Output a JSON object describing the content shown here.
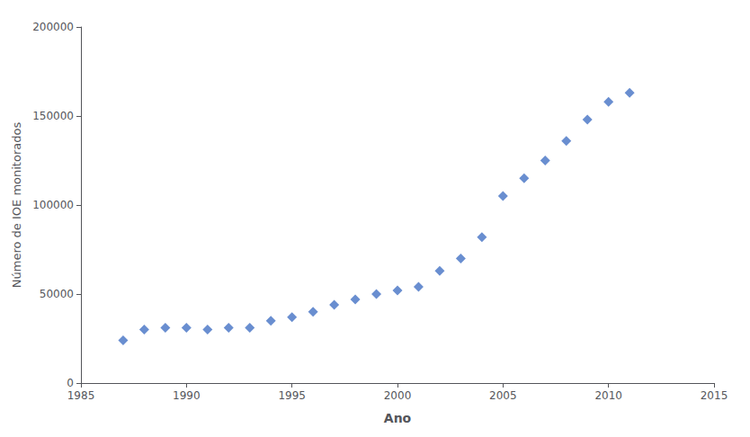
{
  "chart_data": {
    "type": "scatter",
    "x": [
      1987,
      1988,
      1989,
      1990,
      1991,
      1992,
      1993,
      1994,
      1995,
      1996,
      1997,
      1998,
      1999,
      2000,
      2001,
      2002,
      2003,
      2004,
      2005,
      2006,
      2007,
      2008,
      2009,
      2010,
      2011
    ],
    "values": [
      24000,
      30000,
      31000,
      31000,
      30000,
      31000,
      31000,
      35000,
      37000,
      40000,
      44000,
      47000,
      50000,
      52000,
      54000,
      63000,
      70000,
      82000,
      105000,
      115000,
      125000,
      136000,
      148000,
      158000,
      163000
    ],
    "color": "#4472C4",
    "marker": "diamond",
    "xlabel": "Ano",
    "ylabel": "Número de IOE monitorados",
    "xlim": [
      1985,
      2015
    ],
    "ylim": [
      0,
      200000
    ],
    "xticks": [
      1985,
      1990,
      1995,
      2000,
      2005,
      2010,
      2015
    ],
    "yticks": [
      0,
      50000,
      100000,
      150000,
      200000
    ],
    "grid": false
  }
}
